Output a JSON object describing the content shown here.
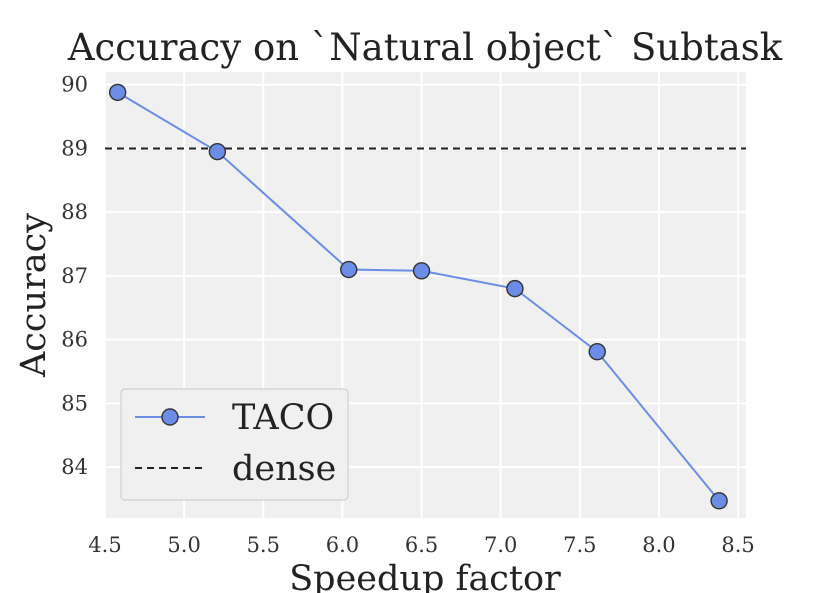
{
  "chart_data": {
    "type": "line",
    "title": "Accuracy on `Natural object` Subtask",
    "xlabel": "Speedup factor",
    "ylabel": "Accuracy",
    "xlim": [
      4.5,
      8.55
    ],
    "ylim": [
      83.2,
      90.2
    ],
    "xticks": [
      "4.5",
      "5.0",
      "5.5",
      "6.0",
      "6.5",
      "7.0",
      "7.5",
      "8.0",
      "8.5"
    ],
    "yticks": [
      "84",
      "85",
      "86",
      "87",
      "88",
      "89",
      "90"
    ],
    "grid": true,
    "legend_position": "lower-left",
    "series": [
      {
        "name": "TACO",
        "color": "#6b8de8",
        "marker": "circle",
        "x": [
          4.58,
          5.21,
          6.04,
          6.5,
          7.09,
          7.61,
          8.38
        ],
        "y": [
          89.88,
          88.95,
          87.1,
          87.08,
          86.8,
          85.81,
          83.47
        ]
      },
      {
        "name": "dense",
        "color": "#222222",
        "style": "dashed",
        "value": 89.0
      }
    ]
  }
}
